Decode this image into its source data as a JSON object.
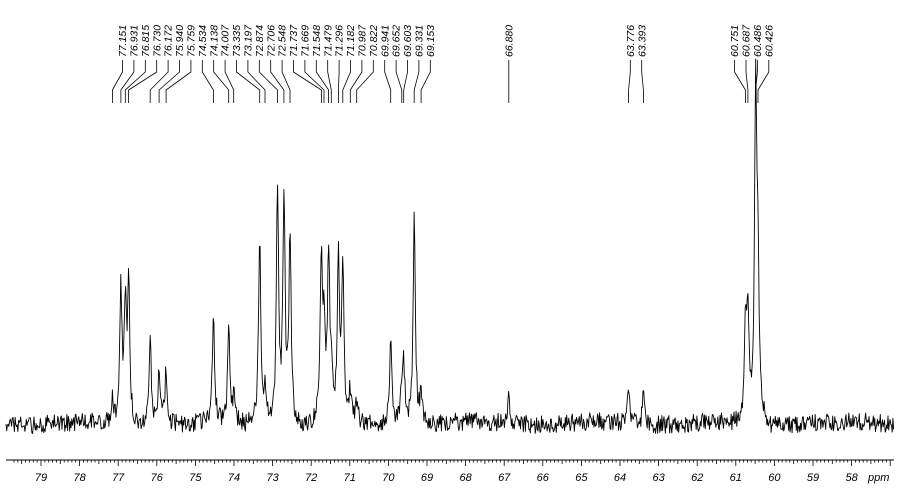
{
  "chart_data": {
    "type": "line",
    "title": "",
    "xlabel": "ppm",
    "ylabel": "",
    "xlim": [
      79.7,
      57.0
    ],
    "x_reversed": true,
    "grid": false,
    "x_ticks": [
      79,
      78,
      77,
      76,
      75,
      74,
      73,
      72,
      71,
      70,
      69,
      68,
      67,
      66,
      65,
      64,
      63,
      62,
      61,
      60,
      59,
      58
    ],
    "x_tick_labels": [
      "79",
      "78",
      "77",
      "76",
      "75",
      "74",
      "73",
      "72",
      "71",
      "70",
      "69",
      "68",
      "67",
      "66",
      "65",
      "64",
      "63",
      "62",
      "61",
      "60",
      "59",
      "58"
    ],
    "peak_labels": [
      "77.151",
      "76.931",
      "76.815",
      "76.730",
      "76.172",
      "75.940",
      "75.759",
      "74.534",
      "74.138",
      "74.007",
      "73.335",
      "73.197",
      "72.874",
      "72.706",
      "72.548",
      "71.737",
      "71.669",
      "71.548",
      "71.479",
      "71.296",
      "71.182",
      "70.987",
      "70.822",
      "69.941",
      "69.652",
      "69.603",
      "69.331",
      "69.153",
      "66.880",
      "63.776",
      "63.393",
      "60.751",
      "60.687",
      "60.486",
      "60.426"
    ],
    "series": [
      {
        "x": [
          77.151,
          76.931,
          76.815,
          76.73,
          76.172,
          75.94,
          75.759,
          74.534,
          74.138,
          74.007,
          73.335,
          73.197,
          72.874,
          72.706,
          72.548,
          71.737,
          71.669,
          71.548,
          71.479,
          71.296,
          71.182,
          70.987,
          70.822,
          69.941,
          69.652,
          69.603,
          69.331,
          69.153,
          66.88,
          63.776,
          63.393,
          60.751,
          60.687,
          60.486,
          60.426
        ],
        "y": [
          0.07,
          0.4,
          0.33,
          0.42,
          0.27,
          0.17,
          0.17,
          0.32,
          0.3,
          0.07,
          0.59,
          0.11,
          0.72,
          0.69,
          0.59,
          0.51,
          0.26,
          0.51,
          0.1,
          0.49,
          0.48,
          0.09,
          0.07,
          0.26,
          0.1,
          0.16,
          0.65,
          0.1,
          0.09,
          0.11,
          0.09,
          0.26,
          0.32,
          1.0,
          0.45
        ]
      }
    ]
  }
}
